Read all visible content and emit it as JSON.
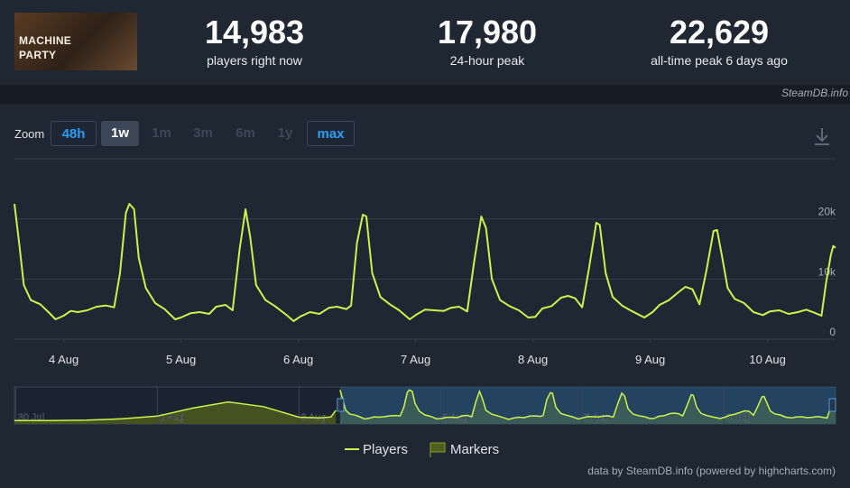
{
  "header": {
    "image_text": [
      "MACHINE",
      "PARTY"
    ],
    "stats": [
      {
        "value": "14,983",
        "label": "players right now"
      },
      {
        "value": "17,980",
        "label": "24-hour peak"
      },
      {
        "value": "22,629",
        "label": "all-time peak 6 days ago"
      }
    ],
    "source": "SteamDB.info"
  },
  "zoom": {
    "label": "Zoom",
    "buttons": [
      "48h",
      "1w",
      "1m",
      "3m",
      "6m",
      "1y",
      "max"
    ]
  },
  "credits": "data by SteamDB.info (powered by highcharts.com)",
  "chart_data": {
    "type": "line",
    "series": [
      {
        "name": "Players",
        "color": "#cdf24a",
        "x": [
          3.58,
          3.62,
          3.66,
          3.72,
          3.8,
          3.87,
          3.93,
          4.0,
          4.06,
          4.12,
          4.2,
          4.28,
          4.36,
          4.43,
          4.48,
          4.53,
          4.56,
          4.6,
          4.64,
          4.7,
          4.78,
          4.86,
          4.95,
          5.0,
          5.08,
          5.16,
          5.24,
          5.3,
          5.38,
          5.44,
          5.5,
          5.55,
          5.59,
          5.64,
          5.72,
          5.8,
          5.9,
          5.96,
          6.02,
          6.1,
          6.18,
          6.26,
          6.33,
          6.41,
          6.45,
          6.5,
          6.55,
          6.58,
          6.63,
          6.7,
          6.78,
          6.86,
          6.95,
          7.0,
          7.08,
          7.16,
          7.24,
          7.3,
          7.37,
          7.44,
          7.5,
          7.56,
          7.6,
          7.65,
          7.72,
          7.8,
          7.88,
          7.96,
          8.02,
          8.08,
          8.16,
          8.24,
          8.3,
          8.36,
          8.42,
          8.48,
          8.54,
          8.57,
          8.62,
          8.68,
          8.76,
          8.84,
          8.95,
          9.02,
          9.08,
          9.16,
          9.24,
          9.3,
          9.36,
          9.42,
          9.48,
          9.54,
          9.57,
          9.61,
          9.66,
          9.72,
          9.8,
          9.88,
          9.96,
          10.02,
          10.1,
          10.18,
          10.26,
          10.33,
          10.4,
          10.46,
          10.5,
          10.54,
          10.56,
          10.58
        ],
        "values": [
          22500,
          16000,
          9000,
          6500,
          5800,
          4500,
          3300,
          3900,
          4700,
          4500,
          4800,
          5400,
          5600,
          5300,
          11000,
          21000,
          22500,
          21600,
          13500,
          8500,
          6000,
          5000,
          3300,
          3600,
          4300,
          4500,
          4200,
          5400,
          5700,
          4800,
          15000,
          21600,
          17000,
          9000,
          6500,
          5500,
          4000,
          3000,
          3800,
          4500,
          4200,
          5200,
          5400,
          5000,
          5600,
          16000,
          20700,
          20400,
          11000,
          7000,
          5800,
          4800,
          3300,
          4000,
          4900,
          4800,
          4700,
          5200,
          5400,
          4600,
          13000,
          20400,
          18500,
          10000,
          6500,
          5500,
          4800,
          3600,
          3700,
          5100,
          5500,
          6900,
          7200,
          6800,
          5300,
          12000,
          19350,
          19000,
          11000,
          7000,
          5600,
          4700,
          3600,
          4500,
          5700,
          6500,
          7800,
          8700,
          8300,
          5800,
          11500,
          18000,
          18150,
          14000,
          8500,
          6700,
          6000,
          4500,
          4000,
          4600,
          4800,
          4200,
          4500,
          4900,
          4400,
          3900,
          9500,
          14000,
          15500,
          15200
        ]
      }
    ],
    "markers": {
      "name": "Markers",
      "color": "#4f5d1e"
    },
    "xlim": [
      3.58,
      10.58
    ],
    "xticks": [
      {
        "value": 4,
        "label": "4 Aug"
      },
      {
        "value": 5,
        "label": "5 Aug"
      },
      {
        "value": 6,
        "label": "6 Aug"
      },
      {
        "value": 7,
        "label": "7 Aug"
      },
      {
        "value": 8,
        "label": "8 Aug"
      },
      {
        "value": 9,
        "label": "9 Aug"
      },
      {
        "value": 10,
        "label": "10 Aug"
      }
    ],
    "ylim": [
      0,
      30000
    ],
    "yticks": [
      0,
      {
        "value": 10000,
        "label": "10k"
      },
      {
        "value": 20000,
        "label": "20k"
      }
    ],
    "grid": true,
    "navigator": {
      "x": [
        -1.02,
        -0.5,
        0,
        0.5,
        1,
        1.5,
        2,
        2.5,
        3,
        3.3,
        3.45,
        3.52
      ],
      "values": [
        2200,
        2300,
        2500,
        3400,
        5200,
        10500,
        14600,
        11500,
        4500,
        4000,
        4600,
        9000
      ],
      "xlim": [
        -1.02,
        10.58
      ],
      "ylim": [
        0,
        24500
      ],
      "xticks": [
        {
          "value": -1,
          "label": "30 Jul"
        },
        {
          "value": 1,
          "label": "1 Aug"
        },
        {
          "value": 3,
          "label": "3 Aug"
        },
        {
          "value": 5,
          "label": "5 Aug"
        },
        {
          "value": 7,
          "label": "7 Aug"
        },
        {
          "value": 9,
          "label": "9 Aug"
        }
      ]
    }
  }
}
